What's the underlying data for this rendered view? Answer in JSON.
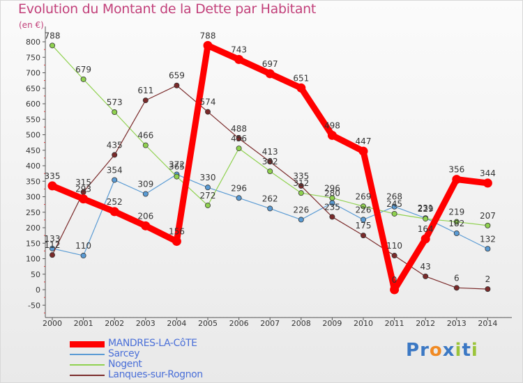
{
  "title": "Evolution du Montant de la Dette par Habitant",
  "unit_label": "(en €)",
  "brand": {
    "letters": [
      {
        "ch": "P",
        "color": "#3b78c4"
      },
      {
        "ch": "r",
        "color": "#3b78c4"
      },
      {
        "ch": "o",
        "color": "#f08a24"
      },
      {
        "ch": "x",
        "color": "#3b78c4"
      },
      {
        "ch": "i",
        "color": "#9bc43a"
      },
      {
        "ch": "t",
        "color": "#3b78c4"
      },
      {
        "ch": "i",
        "color": "#9bc43a"
      }
    ]
  },
  "chart_data": {
    "type": "line",
    "x": [
      "2000",
      "2001",
      "2002",
      "2003",
      "2004",
      "2005",
      "2006",
      "2007",
      "2008",
      "2009",
      "2010",
      "2011",
      "2012",
      "2013",
      "2014"
    ],
    "y_ticks": [
      800,
      750,
      700,
      650,
      600,
      550,
      500,
      450,
      400,
      350,
      300,
      250,
      200,
      150,
      100,
      50,
      0,
      -50
    ],
    "ylim": [
      -50,
      800
    ],
    "grid": false,
    "legend_position": "bottom-left",
    "series": [
      {
        "name": "Sarcey",
        "color": "#5a9bd4",
        "values": [
          133,
          110,
          354,
          309,
          372,
          330,
          296,
          262,
          226,
          280,
          226,
          268,
          231,
          182,
          132
        ],
        "labels": [
          "133",
          "110",
          "354",
          "309",
          "372",
          "330",
          "296",
          "262",
          "226",
          "280",
          "226",
          "268",
          "231",
          "182",
          "132"
        ]
      },
      {
        "name": "Nogent",
        "color": "#8fd14f",
        "values": [
          788,
          679,
          573,
          466,
          365,
          272,
          456,
          382,
          312,
          296,
          269,
          245,
          229,
          219,
          207
        ],
        "labels": [
          "788",
          "679",
          "573",
          "466",
          "365",
          "272",
          "456",
          "382",
          "312",
          "296",
          "269",
          "245",
          "229",
          "219",
          "207"
        ]
      },
      {
        "name": "Lanques-sur-Rognon",
        "color": "#7a2a2a",
        "values": [
          112,
          315,
          435,
          611,
          659,
          574,
          488,
          413,
          335,
          235,
          175,
          110,
          43,
          6,
          2
        ],
        "labels": [
          "112",
          "315",
          "435",
          "611",
          "659",
          "574",
          "488",
          "413",
          "335",
          "235",
          "175",
          "110",
          "43",
          "6",
          "2"
        ]
      },
      {
        "name": "MANDRES-LA-CôTE",
        "color": "#ff0000",
        "values": [
          335,
          293,
          252,
          206,
          156,
          788,
          743,
          697,
          651,
          498,
          447,
          0,
          164,
          356,
          344
        ],
        "labels": [
          "335",
          "293",
          "252",
          "206",
          "156",
          "788",
          "743",
          "697",
          "651",
          "498",
          "447",
          "0",
          "164",
          "356",
          "344"
        ]
      }
    ],
    "legend_order": [
      "MANDRES-LA-CôTE",
      "Sarcey",
      "Nogent",
      "Lanques-sur-Rognon"
    ]
  }
}
